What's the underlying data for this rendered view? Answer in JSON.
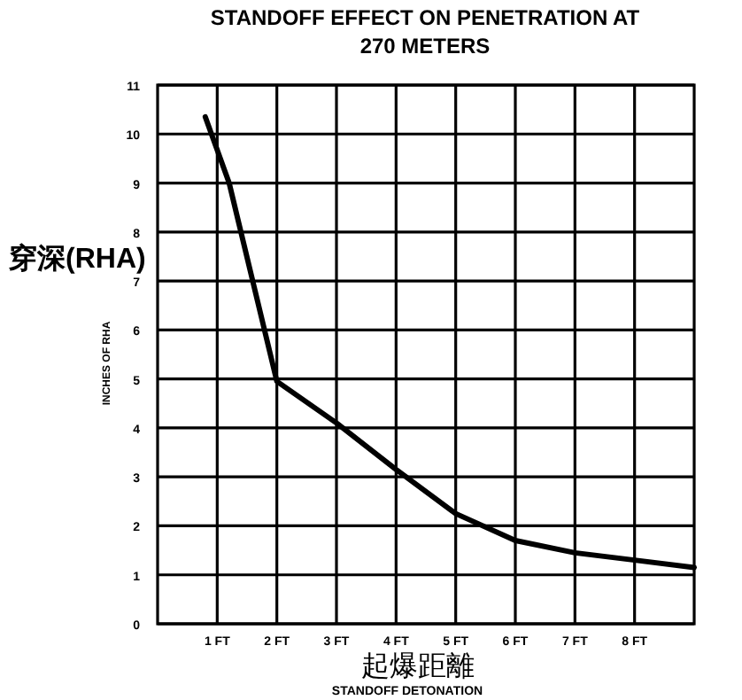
{
  "chart_data": {
    "type": "line",
    "title": "STANDOFF EFFECT ON PENETRATION AT 270 METERS",
    "xlabel": "STANDOFF DETONATION",
    "ylabel": "INCHES OF RHA",
    "annotations": [
      "穿深(RHA)",
      "起爆距離"
    ],
    "x": [
      0.8,
      1.2,
      2,
      3,
      4,
      5,
      6,
      7,
      8,
      9
    ],
    "series": [
      {
        "color": "#000000",
        "values": [
          10.35,
          9.0,
          4.95,
          4.1,
          3.15,
          2.25,
          1.7,
          1.45,
          1.3,
          1.15
        ]
      }
    ],
    "xlim": [
      0,
      9
    ],
    "xticks": [
      {
        "value": 1,
        "label": "1 FT"
      },
      {
        "value": 2,
        "label": "2 FT"
      },
      {
        "value": 3,
        "label": "3 FT"
      },
      {
        "value": 4,
        "label": "4 FT"
      },
      {
        "value": 5,
        "label": "5 FT"
      },
      {
        "value": 6,
        "label": "6 FT"
      },
      {
        "value": 7,
        "label": "7 FT"
      },
      {
        "value": 8,
        "label": "8 FT"
      }
    ],
    "ylim": [
      0,
      11
    ],
    "yticks": [
      0,
      1,
      2,
      3,
      4,
      5,
      6,
      7,
      8,
      9,
      10,
      11
    ],
    "grid": true,
    "marker": "none",
    "line_style": "solid"
  }
}
